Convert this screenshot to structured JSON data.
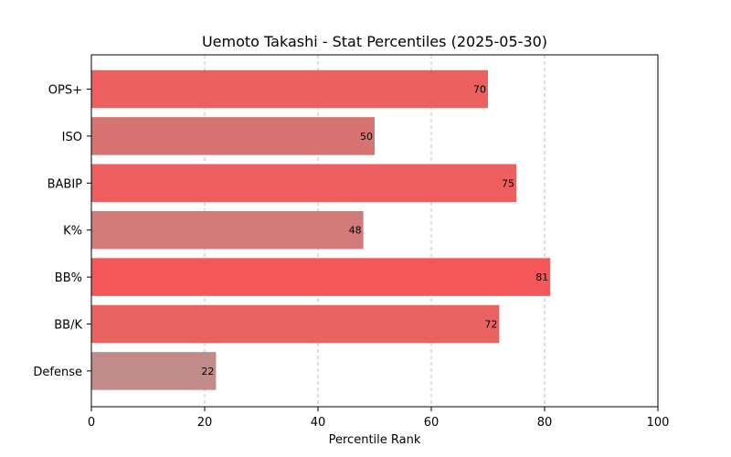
{
  "chart_data": {
    "type": "bar",
    "orientation": "horizontal",
    "title": "Uemoto Takashi - Stat Percentiles (2025-05-30)",
    "xlabel": "Percentile Rank",
    "ylabel": "",
    "xlim": [
      0,
      100
    ],
    "xticks": [
      0,
      20,
      40,
      60,
      80,
      100
    ],
    "grid": "vertical dashed",
    "categories": [
      "OPS+",
      "ISO",
      "BABIP",
      "K%",
      "BB%",
      "BB/K",
      "Defense"
    ],
    "values": [
      70,
      50,
      75,
      48,
      81,
      72,
      22
    ],
    "colors": [
      "#ec6060",
      "#d77472",
      "#ed5f5f",
      "#d27b78",
      "#f45757",
      "#ea6363",
      "#c18b8a"
    ]
  }
}
